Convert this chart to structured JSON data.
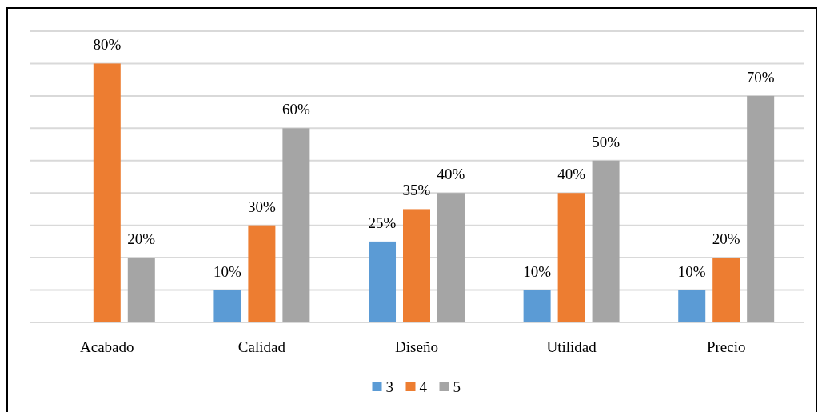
{
  "chart_data": {
    "type": "bar",
    "categories": [
      "Acabado",
      "Calidad",
      "Diseño",
      "Utilidad",
      "Precio"
    ],
    "series": [
      {
        "name": "3",
        "color": "#5b9bd5",
        "values": [
          null,
          10,
          25,
          10,
          10
        ],
        "value_labels": [
          null,
          "10%",
          "25%",
          "10%",
          "10%"
        ]
      },
      {
        "name": "4",
        "color": "#ed7d31",
        "values": [
          80,
          30,
          35,
          40,
          20
        ],
        "value_labels": [
          "80%",
          "30%",
          "35%",
          "40%",
          "20%"
        ]
      },
      {
        "name": "5",
        "color": "#a5a5a5",
        "values": [
          20,
          60,
          40,
          50,
          70
        ],
        "value_labels": [
          "20%",
          "60%",
          "40%",
          "50%",
          "70%"
        ]
      }
    ],
    "ylim": [
      0,
      90
    ],
    "yticks": [
      {
        "value": 0,
        "label": null
      },
      {
        "value": 10,
        "label": null
      },
      {
        "value": 20,
        "label": null
      },
      {
        "value": 30,
        "label": null
      },
      {
        "value": 40,
        "label": null
      },
      {
        "value": 50,
        "label": null
      },
      {
        "value": 60,
        "label": null
      },
      {
        "value": 70,
        "label": null
      },
      {
        "value": 80,
        "label": null
      },
      {
        "value": 90,
        "label": null
      }
    ],
    "grid": "y",
    "legend": "bottom",
    "tick_labels": "x"
  }
}
